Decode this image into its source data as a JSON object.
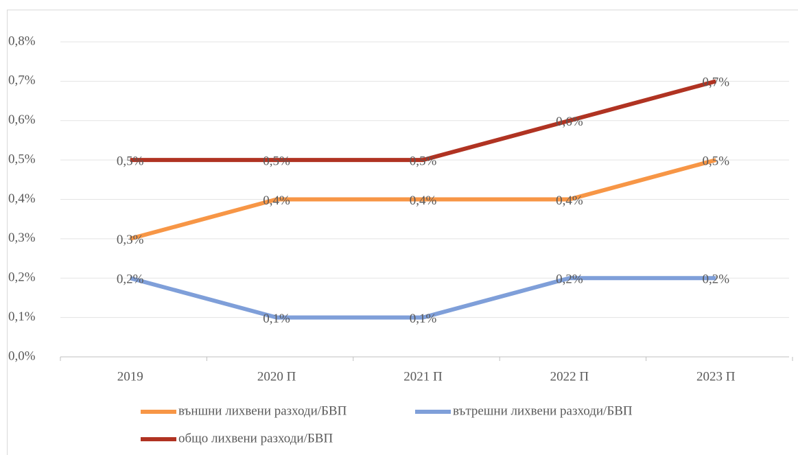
{
  "chart_data": {
    "type": "line",
    "categories": [
      "2019",
      "2020 П",
      "2021 П",
      "2022 П",
      "2023 П"
    ],
    "series": [
      {
        "name": "външни лихвени разходи/БВП",
        "color": "#f79646",
        "values": [
          0.3,
          0.4,
          0.4,
          0.4,
          0.5
        ],
        "value_labels": [
          "0,3%",
          "0,4%",
          "0,4%",
          "0,4%",
          "0,5%"
        ]
      },
      {
        "name": "вътрешни лихвени разходи/БВП",
        "color": "#7f9fd9",
        "values": [
          0.2,
          0.1,
          0.1,
          0.2,
          0.2
        ],
        "value_labels": [
          "0,2%",
          "0,1%",
          "0,1%",
          "0,2%",
          "0,2%"
        ]
      },
      {
        "name": "общо лихвени разходи/БВП",
        "color": "#b03322",
        "values": [
          0.5,
          0.5,
          0.5,
          0.6,
          0.7
        ],
        "value_labels": [
          "0,5%",
          "0,5%",
          "0,5%",
          "0,6%",
          "0,7%"
        ]
      }
    ],
    "ylim": [
      0,
      0.8
    ],
    "yticks": [
      {
        "value": 0,
        "label": "0,0%"
      },
      {
        "value": 0.1,
        "label": "0,1%"
      },
      {
        "value": 0.2,
        "label": "0,2%"
      },
      {
        "value": 0.3,
        "label": "0,3%"
      },
      {
        "value": 0.4,
        "label": "0,4%"
      },
      {
        "value": 0.5,
        "label": "0,5%"
      },
      {
        "value": 0.6,
        "label": "0,6%"
      },
      {
        "value": 0.7,
        "label": "0,7%"
      },
      {
        "value": 0.8,
        "label": "0,8%"
      }
    ],
    "grid": true,
    "legend": "bottom"
  }
}
